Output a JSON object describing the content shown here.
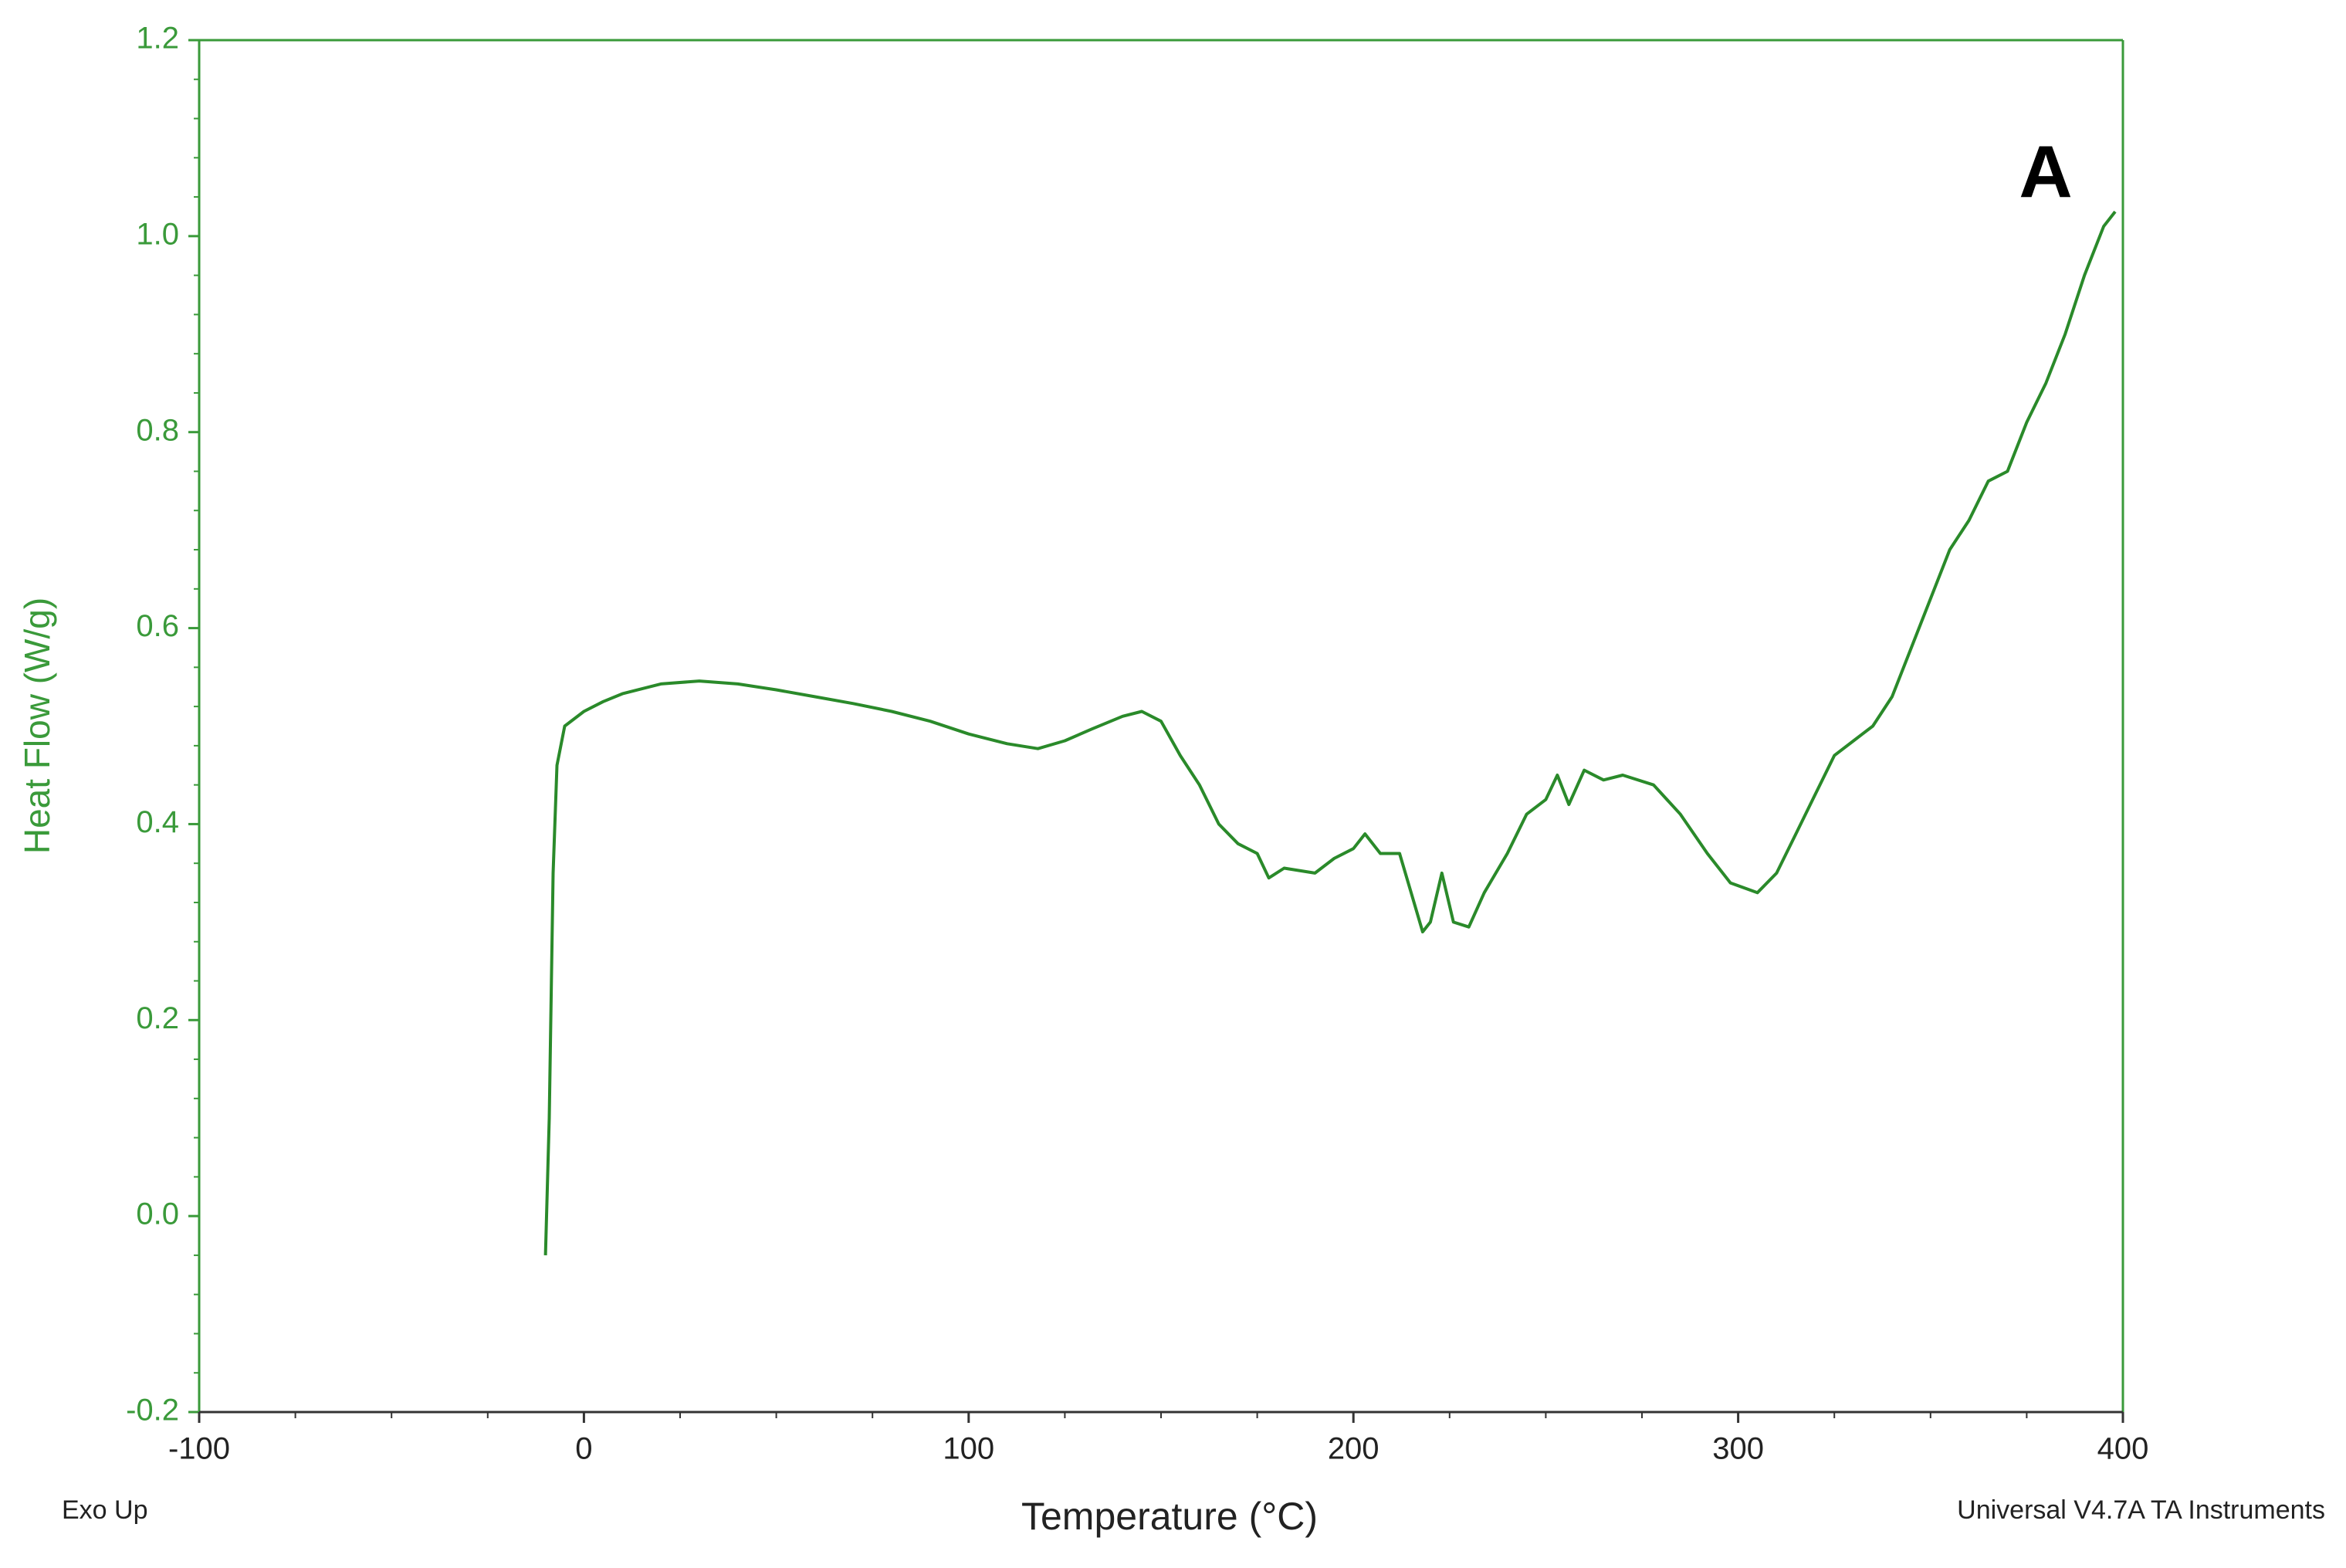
{
  "chart_data": {
    "type": "line",
    "x_label": "Temperature (°C)",
    "y_label": "Heat Flow (W/g)",
    "annotations": {
      "panel": "A",
      "left_note": "Exo Up",
      "right_note": "Universal V4.7A TA Instruments"
    },
    "xlim": [
      -100,
      400
    ],
    "xticks": [
      -100,
      0,
      100,
      200,
      300,
      400
    ],
    "ylim": [
      -0.2,
      1.2
    ],
    "yticks": [
      -0.2,
      {
        "value": 0,
        "label": "0.0"
      },
      0.2,
      0.4,
      0.6,
      0.8,
      {
        "value": 1,
        "label": "1.0"
      },
      1.2
    ],
    "axis_color": "#3a9a3a",
    "series": [
      {
        "color": "#2a8a2a",
        "x": [
          -10,
          -9,
          -8,
          -7,
          -5,
          0,
          5,
          10,
          20,
          30,
          40,
          50,
          60,
          70,
          80,
          90,
          100,
          110,
          118,
          125,
          132,
          140,
          145,
          150,
          155,
          160,
          165,
          170,
          175,
          178,
          182,
          190,
          195,
          200,
          203,
          207,
          212,
          215,
          218,
          220,
          223,
          226,
          230,
          234,
          240,
          245,
          250,
          253,
          256,
          260,
          265,
          270,
          278,
          285,
          292,
          298,
          305,
          310,
          315,
          320,
          325,
          330,
          335,
          340,
          345,
          350,
          355,
          360,
          365,
          370,
          375,
          380,
          385,
          390,
          395,
          398
        ],
        "values": [
          -0.04,
          0.1,
          0.35,
          0.46,
          0.5,
          0.515,
          0.525,
          0.533,
          0.543,
          0.546,
          0.543,
          0.537,
          0.53,
          0.523,
          0.515,
          0.505,
          0.492,
          0.482,
          0.477,
          0.485,
          0.497,
          0.51,
          0.515,
          0.505,
          0.47,
          0.44,
          0.4,
          0.38,
          0.37,
          0.345,
          0.355,
          0.35,
          0.365,
          0.375,
          0.39,
          0.37,
          0.37,
          0.33,
          0.29,
          0.3,
          0.35,
          0.3,
          0.295,
          0.33,
          0.37,
          0.41,
          0.425,
          0.45,
          0.42,
          0.455,
          0.445,
          0.45,
          0.44,
          0.41,
          0.37,
          0.34,
          0.33,
          0.35,
          0.39,
          0.43,
          0.47,
          0.485,
          0.5,
          0.53,
          0.58,
          0.63,
          0.68,
          0.71,
          0.75,
          0.76,
          0.81,
          0.85,
          0.9,
          0.96,
          1.01,
          1.025
        ]
      }
    ]
  }
}
